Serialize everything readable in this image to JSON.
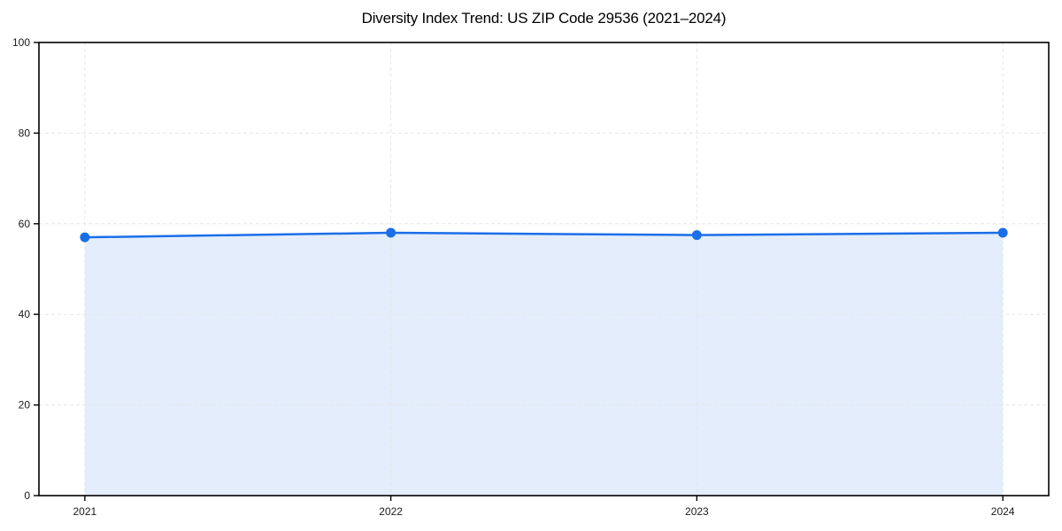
{
  "chart": {
    "title": "Diversity Index Trend: US ZIP Code 29536 (2021–2024)"
  },
  "chart_data": {
    "type": "area",
    "title": "Diversity Index Trend: US ZIP Code 29536 (2021–2024)",
    "x": [
      2021,
      2022,
      2023,
      2024
    ],
    "categories": [
      "2021",
      "2022",
      "2023",
      "2024"
    ],
    "series": [
      {
        "name": "Diversity Index",
        "values": [
          57,
          58,
          57.5,
          58
        ]
      }
    ],
    "xlabel": "",
    "ylabel": "",
    "xlim": [
      2020.85,
      2024.15
    ],
    "ylim": [
      0,
      100
    ],
    "xticks": [
      2021,
      2022,
      2023,
      2024
    ],
    "xtick_labels": [
      "2021",
      "2022",
      "2023",
      "2024"
    ],
    "yticks": [
      0,
      20,
      40,
      60,
      80,
      100
    ],
    "ytick_labels": [
      "0",
      "20",
      "40",
      "60",
      "80",
      "100"
    ],
    "grid": true,
    "grid_style": "dashed",
    "legend": "none",
    "colors": {
      "line": "#1a6ee8",
      "marker": "#1a6ee8",
      "fill": "#1a6ee8",
      "fill_opacity": 0.12,
      "grid": "#e7e7e7",
      "spine": "#000000",
      "tick_label": "#1a1a1a",
      "title": "#000000",
      "background": "#ffffff"
    }
  }
}
